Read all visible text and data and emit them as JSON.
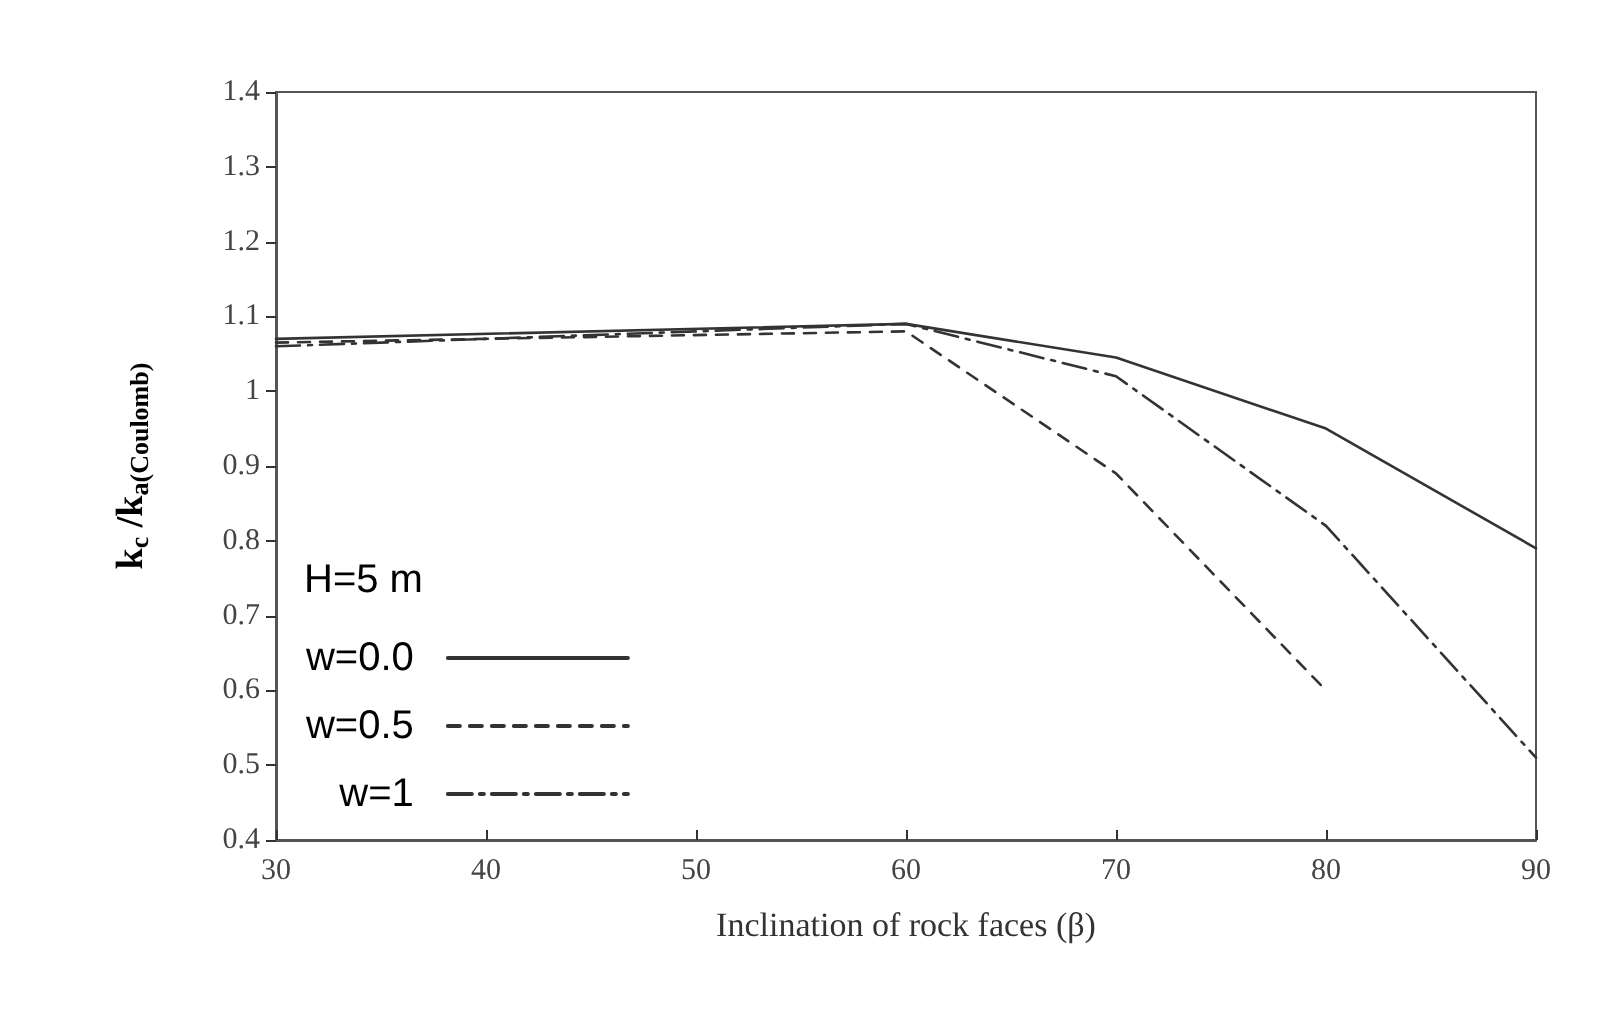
{
  "chart_data": {
    "type": "line",
    "xlabel": "Inclination of rock faces (β)",
    "ylabel": "k$_{c}$ /k$_{a(Coulomb)}$",
    "legend_title": "H=5 m",
    "x": [
      30,
      60,
      70,
      80,
      90
    ],
    "series": [
      {
        "name": "w=0.0",
        "color": "#333333",
        "line_style": "solid",
        "values": [
          1.07,
          1.09,
          1.045,
          0.95,
          0.79
        ]
      },
      {
        "name": "w=0.5",
        "color": "#333333",
        "line_style": "dashed",
        "values": [
          1.065,
          1.08,
          0.89,
          0.6,
          null
        ]
      },
      {
        "name": "w=1",
        "color": "#333333",
        "line_style": "dashdot",
        "values": [
          1.06,
          1.09,
          1.02,
          0.82,
          0.51
        ]
      }
    ],
    "xlim": [
      30,
      90
    ],
    "xticks": [
      30,
      40,
      50,
      60,
      70,
      80,
      90
    ],
    "ylim": [
      0.4,
      1.4
    ],
    "yticks": [
      0.4,
      0.5,
      0.6,
      0.7,
      0.8,
      0.9,
      1,
      1.1,
      1.2,
      1.3,
      1.4
    ],
    "grid": false,
    "legend": "bottom left",
    "marker": "none"
  }
}
